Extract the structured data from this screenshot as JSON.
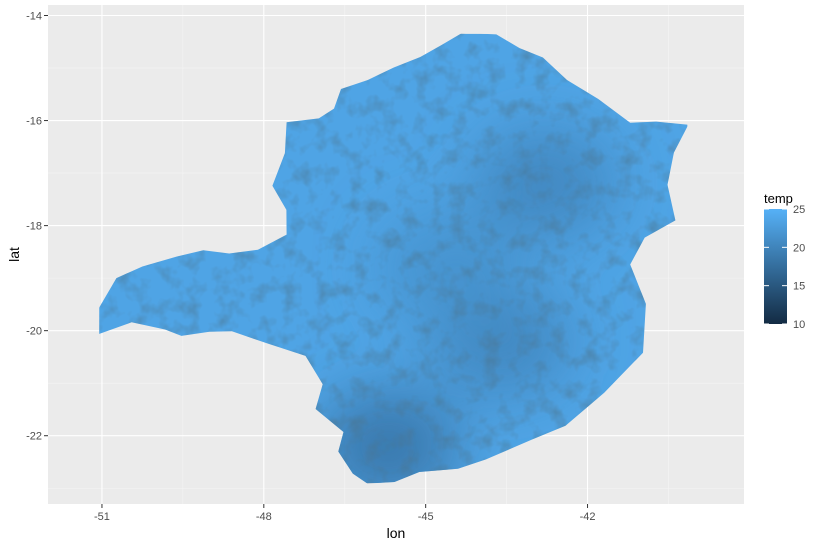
{
  "chart_data": {
    "type": "heatmap",
    "title": "",
    "xlabel": "lon",
    "ylabel": "lat",
    "xlim": [
      -52.0,
      -39.1
    ],
    "ylim": [
      -23.3,
      -13.8
    ],
    "x_ticks": [
      -51,
      -48,
      -45,
      -42
    ],
    "x_tick_labels": [
      "-51",
      "-48",
      "-45",
      "-42"
    ],
    "y_ticks": [
      -14,
      -16,
      -18,
      -20,
      -22
    ],
    "y_tick_labels": [
      "-14",
      "-16",
      "-18",
      "-20",
      "-22"
    ],
    "grid": true,
    "legend": {
      "title": "temp",
      "placement": "right",
      "min": 10,
      "max": 25,
      "breaks": [
        25,
        20,
        15,
        10
      ],
      "break_labels": [
        "25",
        "20",
        "15",
        "10"
      ],
      "colors": {
        "low": "#132B43",
        "high": "#56B1F7"
      }
    },
    "region": {
      "fill_value": 23.5,
      "cooler_zones": [
        {
          "lon": -45.7,
          "lat": -22.2,
          "value": 18
        },
        {
          "lon": -42.8,
          "lat": -17.2,
          "value": 20
        },
        {
          "lon": -43.6,
          "lat": -20.2,
          "value": 20
        },
        {
          "lon": -44.6,
          "lat": -18.8,
          "value": 21.5
        }
      ],
      "outline": [
        [
          -51.03,
          -19.6
        ],
        [
          -50.75,
          -19.0
        ],
        [
          -50.25,
          -18.75
        ],
        [
          -49.6,
          -18.6
        ],
        [
          -49.15,
          -18.45
        ],
        [
          -48.65,
          -18.55
        ],
        [
          -48.1,
          -18.45
        ],
        [
          -47.55,
          -18.2
        ],
        [
          -47.6,
          -17.7
        ],
        [
          -47.85,
          -17.25
        ],
        [
          -47.6,
          -16.6
        ],
        [
          -47.55,
          -16.05
        ],
        [
          -47.0,
          -15.95
        ],
        [
          -46.7,
          -15.8
        ],
        [
          -46.55,
          -15.4
        ],
        [
          -46.1,
          -15.2
        ],
        [
          -45.6,
          -15.0
        ],
        [
          -45.1,
          -14.8
        ],
        [
          -44.7,
          -14.55
        ],
        [
          -44.35,
          -14.35
        ],
        [
          -43.7,
          -14.35
        ],
        [
          -43.25,
          -14.65
        ],
        [
          -42.8,
          -14.8
        ],
        [
          -42.4,
          -15.2
        ],
        [
          -41.8,
          -15.6
        ],
        [
          -41.2,
          -16.05
        ],
        [
          -40.7,
          -16.0
        ],
        [
          -40.15,
          -16.1
        ],
        [
          -40.4,
          -16.6
        ],
        [
          -40.5,
          -17.25
        ],
        [
          -40.4,
          -17.9
        ],
        [
          -40.95,
          -18.2
        ],
        [
          -41.2,
          -18.75
        ],
        [
          -40.9,
          -19.5
        ],
        [
          -41.0,
          -20.4
        ],
        [
          -41.7,
          -21.2
        ],
        [
          -42.4,
          -21.8
        ],
        [
          -43.0,
          -22.1
        ],
        [
          -43.9,
          -22.45
        ],
        [
          -44.4,
          -22.6
        ],
        [
          -45.1,
          -22.7
        ],
        [
          -45.55,
          -22.9
        ],
        [
          -46.1,
          -22.9
        ],
        [
          -46.35,
          -22.75
        ],
        [
          -46.6,
          -22.3
        ],
        [
          -46.55,
          -21.9
        ],
        [
          -47.05,
          -21.5
        ],
        [
          -46.9,
          -21.0
        ],
        [
          -47.2,
          -20.5
        ],
        [
          -48.0,
          -20.25
        ],
        [
          -48.6,
          -20.0
        ],
        [
          -49.0,
          -20.05
        ],
        [
          -49.5,
          -20.1
        ],
        [
          -49.85,
          -19.95
        ],
        [
          -50.45,
          -19.85
        ],
        [
          -51.05,
          -20.05
        ]
      ]
    }
  }
}
